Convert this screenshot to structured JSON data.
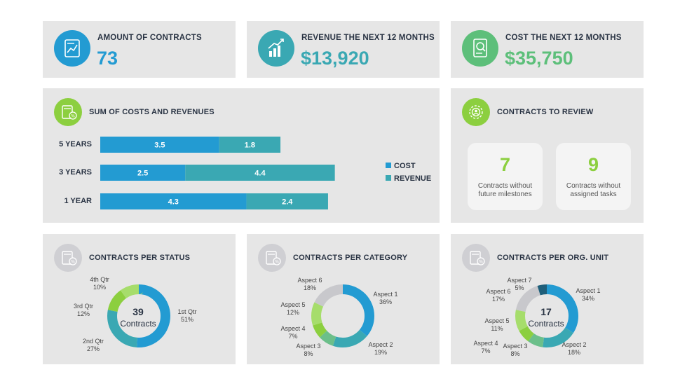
{
  "colors": {
    "blue": "#239bd2",
    "teal": "#3aa8b3",
    "green": "#8ccf3f",
    "lightgreen": "#a6dd6b",
    "gray": "#c8c8cc",
    "navy": "#1f5f7a"
  },
  "kpis": [
    {
      "title": "AMOUNT OF CONTRACTS",
      "value": "73",
      "color": "#239bd2",
      "icon": "contract-chart-icon"
    },
    {
      "title": "REVENUE THE NEXT 12 MONTHS",
      "value": "$13,920",
      "color": "#3aa8b3",
      "icon": "revenue-growth-icon"
    },
    {
      "title": "COST THE NEXT 12 MONTHS",
      "value": "$35,750",
      "color": "#5dbf7a",
      "icon": "cost-document-icon"
    }
  ],
  "sum_panel": {
    "title": "SUM OF COSTS AND REVENUES",
    "icon": "calculator-percent-icon"
  },
  "review_panel": {
    "title": "CONTRACTS TO REVIEW",
    "icon": "gear-people-icon",
    "cards": [
      {
        "value": "7",
        "line1": "Contracts without",
        "line2": "future milestones"
      },
      {
        "value": "9",
        "line1": "Contracts without",
        "line2": "assigned tasks"
      }
    ]
  },
  "status_panel": {
    "title": "CONTRACTS PER STATUS",
    "center_value": "39",
    "center_label": "Contracts"
  },
  "category_panel": {
    "title": "CONTRACTS PER CATEGORY"
  },
  "org_panel": {
    "title": "CONTRACTS PER ORG. UNIT",
    "center_value": "17",
    "center_label": "Contracts"
  },
  "chart_data": [
    {
      "type": "bar",
      "orientation": "horizontal",
      "stacked": true,
      "categories": [
        "5 YEARS",
        "3 YEARS",
        "1 YEAR"
      ],
      "series": [
        {
          "name": "COST",
          "values": [
            3.5,
            2.5,
            4.3
          ],
          "color": "#239bd2"
        },
        {
          "name": "REVENUE",
          "values": [
            1.8,
            4.4,
            2.4
          ],
          "color": "#3aa8b3"
        }
      ],
      "legend": "right"
    },
    {
      "type": "pie",
      "donut": true,
      "title": "CONTRACTS PER STATUS",
      "slices": [
        {
          "name": "1st Qtr",
          "value": 51,
          "label": "51%",
          "color": "#239bd2"
        },
        {
          "name": "2nd Qtr",
          "value": 27,
          "label": "27%",
          "color": "#3aa8b3"
        },
        {
          "name": "3rd Qtr",
          "value": 12,
          "label": "12%",
          "color": "#8ccf3f"
        },
        {
          "name": "4th Qtr",
          "value": 10,
          "label": "10%",
          "color": "#a6dd6b"
        }
      ]
    },
    {
      "type": "pie",
      "donut": true,
      "title": "CONTRACTS PER CATEGORY",
      "slices": [
        {
          "name": "Aspect 1",
          "value": 36,
          "label": "36%",
          "color": "#239bd2"
        },
        {
          "name": "Aspect 2",
          "value": 19,
          "label": "19%",
          "color": "#3aa8b3"
        },
        {
          "name": "Aspect 3",
          "value": 8,
          "label": "8%",
          "color": "#6cbf8a"
        },
        {
          "name": "Aspect 4",
          "value": 7,
          "label": "7%",
          "color": "#8ccf3f"
        },
        {
          "name": "Aspect 5",
          "value": 12,
          "label": "12%",
          "color": "#a6dd6b"
        },
        {
          "name": "Aspect 6",
          "value": 18,
          "label": "18%",
          "color": "#c8c8cc"
        }
      ]
    },
    {
      "type": "pie",
      "donut": true,
      "title": "CONTRACTS PER ORG. UNIT",
      "slices": [
        {
          "name": "Aspect 1",
          "value": 34,
          "label": "34%",
          "color": "#239bd2"
        },
        {
          "name": "Aspect 2",
          "value": 18,
          "label": "18%",
          "color": "#3aa8b3"
        },
        {
          "name": "Aspect 3",
          "value": 8,
          "label": "8%",
          "color": "#6cbf8a"
        },
        {
          "name": "Aspect 4",
          "value": 7,
          "label": "7%",
          "color": "#8ccf3f"
        },
        {
          "name": "Aspect 5",
          "value": 11,
          "label": "11%",
          "color": "#a6dd6b"
        },
        {
          "name": "Aspect 6",
          "value": 17,
          "label": "17%",
          "color": "#c8c8cc"
        },
        {
          "name": "Aspect 7",
          "value": 5,
          "label": "5%",
          "color": "#1f5f7a"
        }
      ]
    }
  ]
}
